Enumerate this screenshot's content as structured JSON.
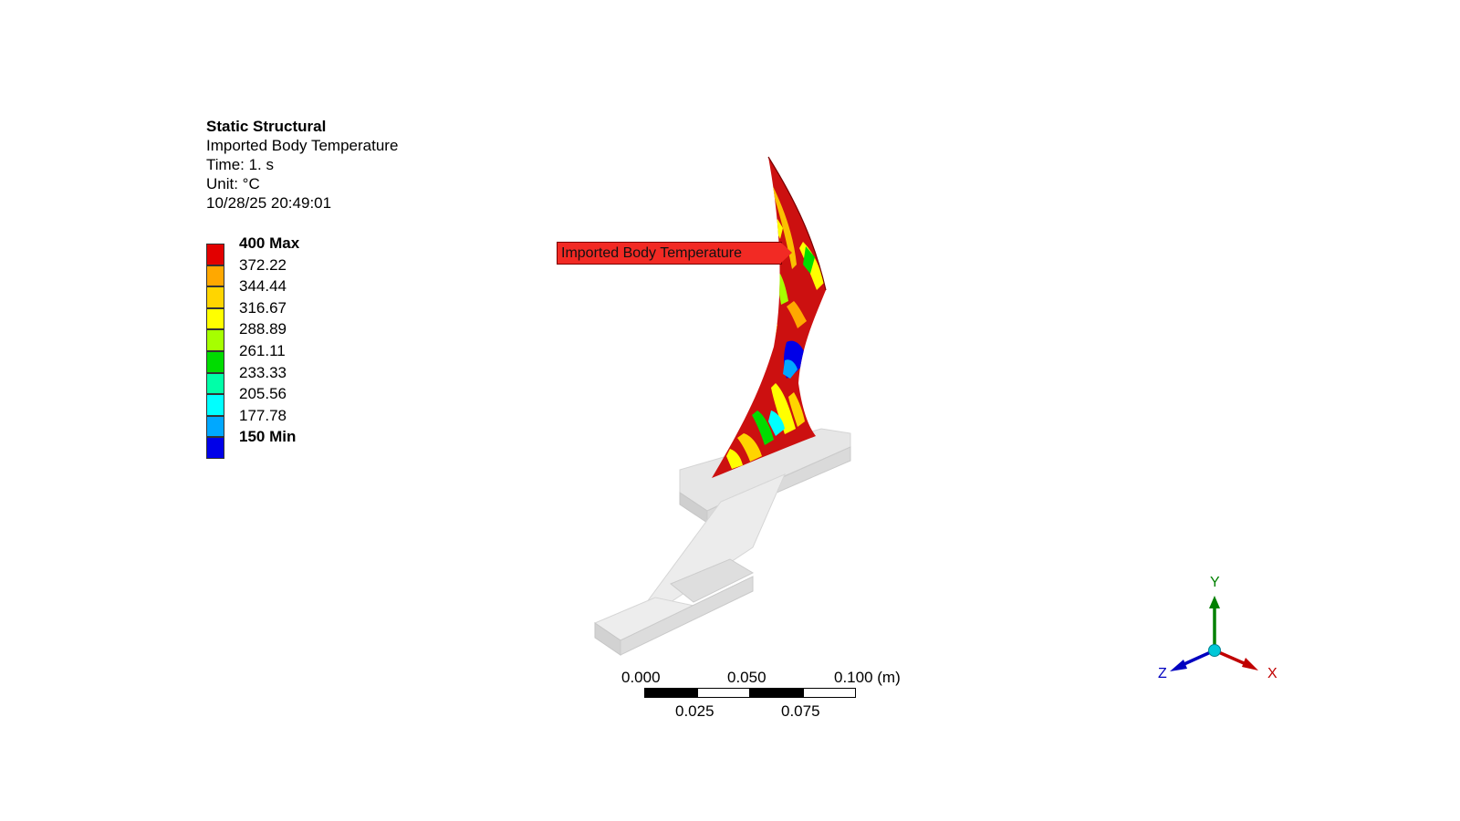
{
  "header": {
    "title": "Static Structural",
    "result_name": "Imported Body Temperature",
    "time": "Time: 1. s",
    "unit": "Unit: °C",
    "timestamp": "10/28/25 20:49:01"
  },
  "legend": {
    "items": [
      {
        "label": "400 Max",
        "color": "#e20000",
        "bold": true
      },
      {
        "label": "372.22",
        "color": "#ffa800",
        "bold": false
      },
      {
        "label": "344.44",
        "color": "#ffd500",
        "bold": false
      },
      {
        "label": "316.67",
        "color": "#ffff00",
        "bold": false
      },
      {
        "label": "288.89",
        "color": "#a6ff00",
        "bold": false
      },
      {
        "label": "261.11",
        "color": "#00dc00",
        "bold": false
      },
      {
        "label": "233.33",
        "color": "#00ffa8",
        "bold": false
      },
      {
        "label": "205.56",
        "color": "#00ffff",
        "bold": false
      },
      {
        "label": "177.78",
        "color": "#00a8ff",
        "bold": false
      },
      {
        "label": "150 Min",
        "color": "#0000e8",
        "bold": true
      }
    ]
  },
  "probe_label": "Imported Body Temperature",
  "scale_bar": {
    "top_labels": [
      "0.000",
      "0.050",
      "0.100 (m)"
    ],
    "bottom_labels": [
      "0.025",
      "0.075"
    ]
  },
  "triad": {
    "x_label": "X",
    "y_label": "Y",
    "z_label": "Z",
    "x_color": "#c00000",
    "y_color": "#008000",
    "z_color": "#0000c0"
  }
}
